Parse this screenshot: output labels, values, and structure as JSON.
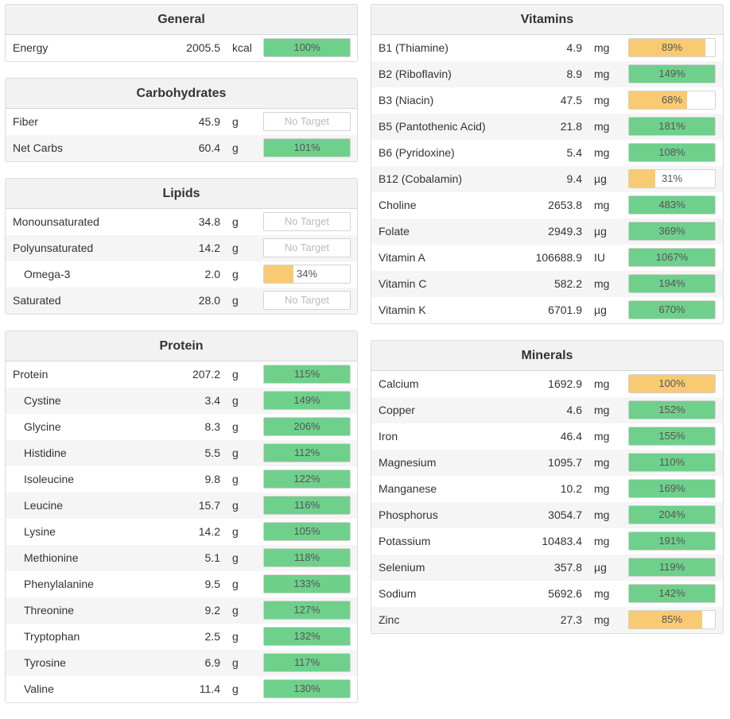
{
  "panels": {
    "general": {
      "title": "General",
      "rows": [
        {
          "name": "Energy",
          "amount": "2005.5",
          "unit": "kcal",
          "pct": "100%",
          "fill": 1.0,
          "color": "green"
        }
      ]
    },
    "carbohydrates": {
      "title": "Carbohydrates",
      "rows": [
        {
          "name": "Fiber",
          "amount": "45.9",
          "unit": "g",
          "pct": "No Target",
          "fill": 0,
          "color": "none"
        },
        {
          "name": "Net Carbs",
          "amount": "60.4",
          "unit": "g",
          "pct": "101%",
          "fill": 1.0,
          "color": "green"
        }
      ]
    },
    "lipids": {
      "title": "Lipids",
      "rows": [
        {
          "name": "Monounsaturated",
          "amount": "34.8",
          "unit": "g",
          "pct": "No Target",
          "fill": 0,
          "color": "none"
        },
        {
          "name": "Polyunsaturated",
          "amount": "14.2",
          "unit": "g",
          "pct": "No Target",
          "fill": 0,
          "color": "none"
        },
        {
          "name": "Omega-3",
          "amount": "2.0",
          "unit": "g",
          "pct": "34%",
          "fill": 0.34,
          "color": "orange",
          "indent": true
        },
        {
          "name": "Saturated",
          "amount": "28.0",
          "unit": "g",
          "pct": "No Target",
          "fill": 0,
          "color": "none"
        }
      ]
    },
    "protein": {
      "title": "Protein",
      "rows": [
        {
          "name": "Protein",
          "amount": "207.2",
          "unit": "g",
          "pct": "115%",
          "fill": 1.0,
          "color": "green"
        },
        {
          "name": "Cystine",
          "amount": "3.4",
          "unit": "g",
          "pct": "149%",
          "fill": 1.0,
          "color": "green",
          "indent": true
        },
        {
          "name": "Glycine",
          "amount": "8.3",
          "unit": "g",
          "pct": "206%",
          "fill": 1.0,
          "color": "green",
          "indent": true
        },
        {
          "name": "Histidine",
          "amount": "5.5",
          "unit": "g",
          "pct": "112%",
          "fill": 1.0,
          "color": "green",
          "indent": true
        },
        {
          "name": "Isoleucine",
          "amount": "9.8",
          "unit": "g",
          "pct": "122%",
          "fill": 1.0,
          "color": "green",
          "indent": true
        },
        {
          "name": "Leucine",
          "amount": "15.7",
          "unit": "g",
          "pct": "116%",
          "fill": 1.0,
          "color": "green",
          "indent": true
        },
        {
          "name": "Lysine",
          "amount": "14.2",
          "unit": "g",
          "pct": "105%",
          "fill": 1.0,
          "color": "green",
          "indent": true
        },
        {
          "name": "Methionine",
          "amount": "5.1",
          "unit": "g",
          "pct": "118%",
          "fill": 1.0,
          "color": "green",
          "indent": true
        },
        {
          "name": "Phenylalanine",
          "amount": "9.5",
          "unit": "g",
          "pct": "133%",
          "fill": 1.0,
          "color": "green",
          "indent": true
        },
        {
          "name": "Threonine",
          "amount": "9.2",
          "unit": "g",
          "pct": "127%",
          "fill": 1.0,
          "color": "green",
          "indent": true
        },
        {
          "name": "Tryptophan",
          "amount": "2.5",
          "unit": "g",
          "pct": "132%",
          "fill": 1.0,
          "color": "green",
          "indent": true
        },
        {
          "name": "Tyrosine",
          "amount": "6.9",
          "unit": "g",
          "pct": "117%",
          "fill": 1.0,
          "color": "green",
          "indent": true
        },
        {
          "name": "Valine",
          "amount": "11.4",
          "unit": "g",
          "pct": "130%",
          "fill": 1.0,
          "color": "green",
          "indent": true
        }
      ]
    },
    "vitamins": {
      "title": "Vitamins",
      "rows": [
        {
          "name": "B1 (Thiamine)",
          "amount": "4.9",
          "unit": "mg",
          "pct": "89%",
          "fill": 0.89,
          "color": "orange"
        },
        {
          "name": "B2 (Riboflavin)",
          "amount": "8.9",
          "unit": "mg",
          "pct": "149%",
          "fill": 1.0,
          "color": "green"
        },
        {
          "name": "B3 (Niacin)",
          "amount": "47.5",
          "unit": "mg",
          "pct": "68%",
          "fill": 0.68,
          "color": "orange"
        },
        {
          "name": "B5 (Pantothenic Acid)",
          "amount": "21.8",
          "unit": "mg",
          "pct": "181%",
          "fill": 1.0,
          "color": "green"
        },
        {
          "name": "B6 (Pyridoxine)",
          "amount": "5.4",
          "unit": "mg",
          "pct": "108%",
          "fill": 1.0,
          "color": "green"
        },
        {
          "name": "B12 (Cobalamin)",
          "amount": "9.4",
          "unit": "µg",
          "pct": "31%",
          "fill": 0.31,
          "color": "orange"
        },
        {
          "name": "Choline",
          "amount": "2653.8",
          "unit": "mg",
          "pct": "483%",
          "fill": 1.0,
          "color": "green"
        },
        {
          "name": "Folate",
          "amount": "2949.3",
          "unit": "µg",
          "pct": "369%",
          "fill": 1.0,
          "color": "green"
        },
        {
          "name": "Vitamin A",
          "amount": "106688.9",
          "unit": "IU",
          "pct": "1067%",
          "fill": 1.0,
          "color": "green"
        },
        {
          "name": "Vitamin C",
          "amount": "582.2",
          "unit": "mg",
          "pct": "194%",
          "fill": 1.0,
          "color": "green"
        },
        {
          "name": "Vitamin K",
          "amount": "6701.9",
          "unit": "µg",
          "pct": "670%",
          "fill": 1.0,
          "color": "green"
        }
      ]
    },
    "minerals": {
      "title": "Minerals",
      "rows": [
        {
          "name": "Calcium",
          "amount": "1692.9",
          "unit": "mg",
          "pct": "100%",
          "fill": 1.0,
          "color": "orange"
        },
        {
          "name": "Copper",
          "amount": "4.6",
          "unit": "mg",
          "pct": "152%",
          "fill": 1.0,
          "color": "green"
        },
        {
          "name": "Iron",
          "amount": "46.4",
          "unit": "mg",
          "pct": "155%",
          "fill": 1.0,
          "color": "green"
        },
        {
          "name": "Magnesium",
          "amount": "1095.7",
          "unit": "mg",
          "pct": "110%",
          "fill": 1.0,
          "color": "green"
        },
        {
          "name": "Manganese",
          "amount": "10.2",
          "unit": "mg",
          "pct": "169%",
          "fill": 1.0,
          "color": "green"
        },
        {
          "name": "Phosphorus",
          "amount": "3054.7",
          "unit": "mg",
          "pct": "204%",
          "fill": 1.0,
          "color": "green"
        },
        {
          "name": "Potassium",
          "amount": "10483.4",
          "unit": "mg",
          "pct": "191%",
          "fill": 1.0,
          "color": "green"
        },
        {
          "name": "Selenium",
          "amount": "357.8",
          "unit": "µg",
          "pct": "119%",
          "fill": 1.0,
          "color": "green"
        },
        {
          "name": "Sodium",
          "amount": "5692.6",
          "unit": "mg",
          "pct": "142%",
          "fill": 1.0,
          "color": "green"
        },
        {
          "name": "Zinc",
          "amount": "27.3",
          "unit": "mg",
          "pct": "85%",
          "fill": 0.85,
          "color": "orange"
        }
      ]
    }
  },
  "colors": {
    "green": "#6fd08c",
    "orange": "#f8cb72"
  }
}
